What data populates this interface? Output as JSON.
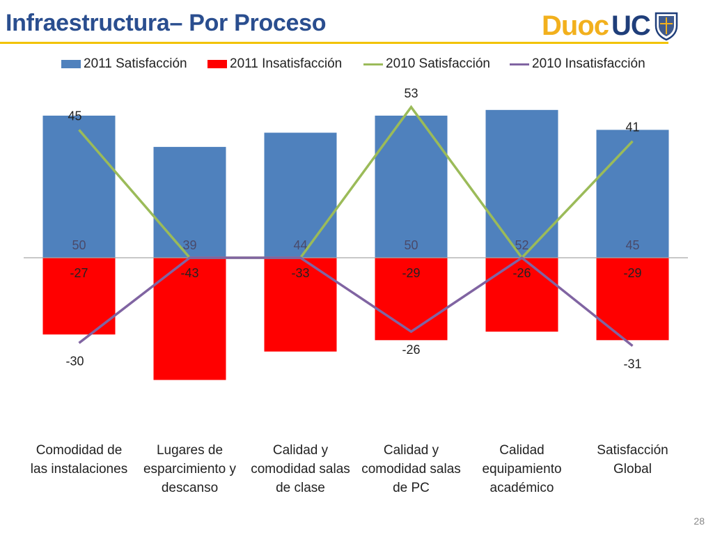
{
  "slide": {
    "title": "Infraestructura– Por Proceso",
    "page_number": "28",
    "logo": {
      "part1": "Duoc",
      "part2": "UC"
    }
  },
  "colors": {
    "sat2011": "#4f81bd",
    "insat2011": "#ff0000",
    "sat2010": "#9bbb59",
    "insat2010": "#8064a2",
    "title": "#2a4e8f",
    "rule": "#f2c300"
  },
  "chart_data": {
    "type": "bar",
    "title": "",
    "categories": [
      [
        "Comodidad de",
        "las instalaciones"
      ],
      [
        "Lugares de",
        "esparcimiento y",
        "descanso"
      ],
      [
        "Calidad y",
        "comodidad salas",
        "de clase"
      ],
      [
        "Calidad y",
        "comodidad salas",
        "de PC"
      ],
      [
        "Calidad",
        "equipamiento",
        "académico"
      ],
      [
        "Satisfacción",
        "Global"
      ]
    ],
    "series": [
      {
        "name": "2011 Satisfacción",
        "kind": "bar",
        "values": [
          50,
          39,
          44,
          50,
          52,
          45
        ]
      },
      {
        "name": "2011 Insatisfacción",
        "kind": "bar",
        "values": [
          -27,
          -43,
          -33,
          -29,
          -26,
          -29
        ]
      },
      {
        "name": "2010 Satisfacción",
        "kind": "line",
        "values": [
          45,
          0,
          0,
          53,
          0,
          41
        ]
      },
      {
        "name": "2010 Insatisfacción",
        "kind": "line",
        "values": [
          -30,
          0,
          0,
          -26,
          0,
          -31
        ]
      }
    ],
    "line_labels": {
      "sat2010": [
        "45",
        null,
        null,
        "53",
        null,
        "41"
      ],
      "insat2010": [
        "-30",
        null,
        null,
        "-26",
        null,
        "-31"
      ]
    },
    "ylim": [
      -52,
      55
    ],
    "legend_position": "top",
    "grid": false
  }
}
